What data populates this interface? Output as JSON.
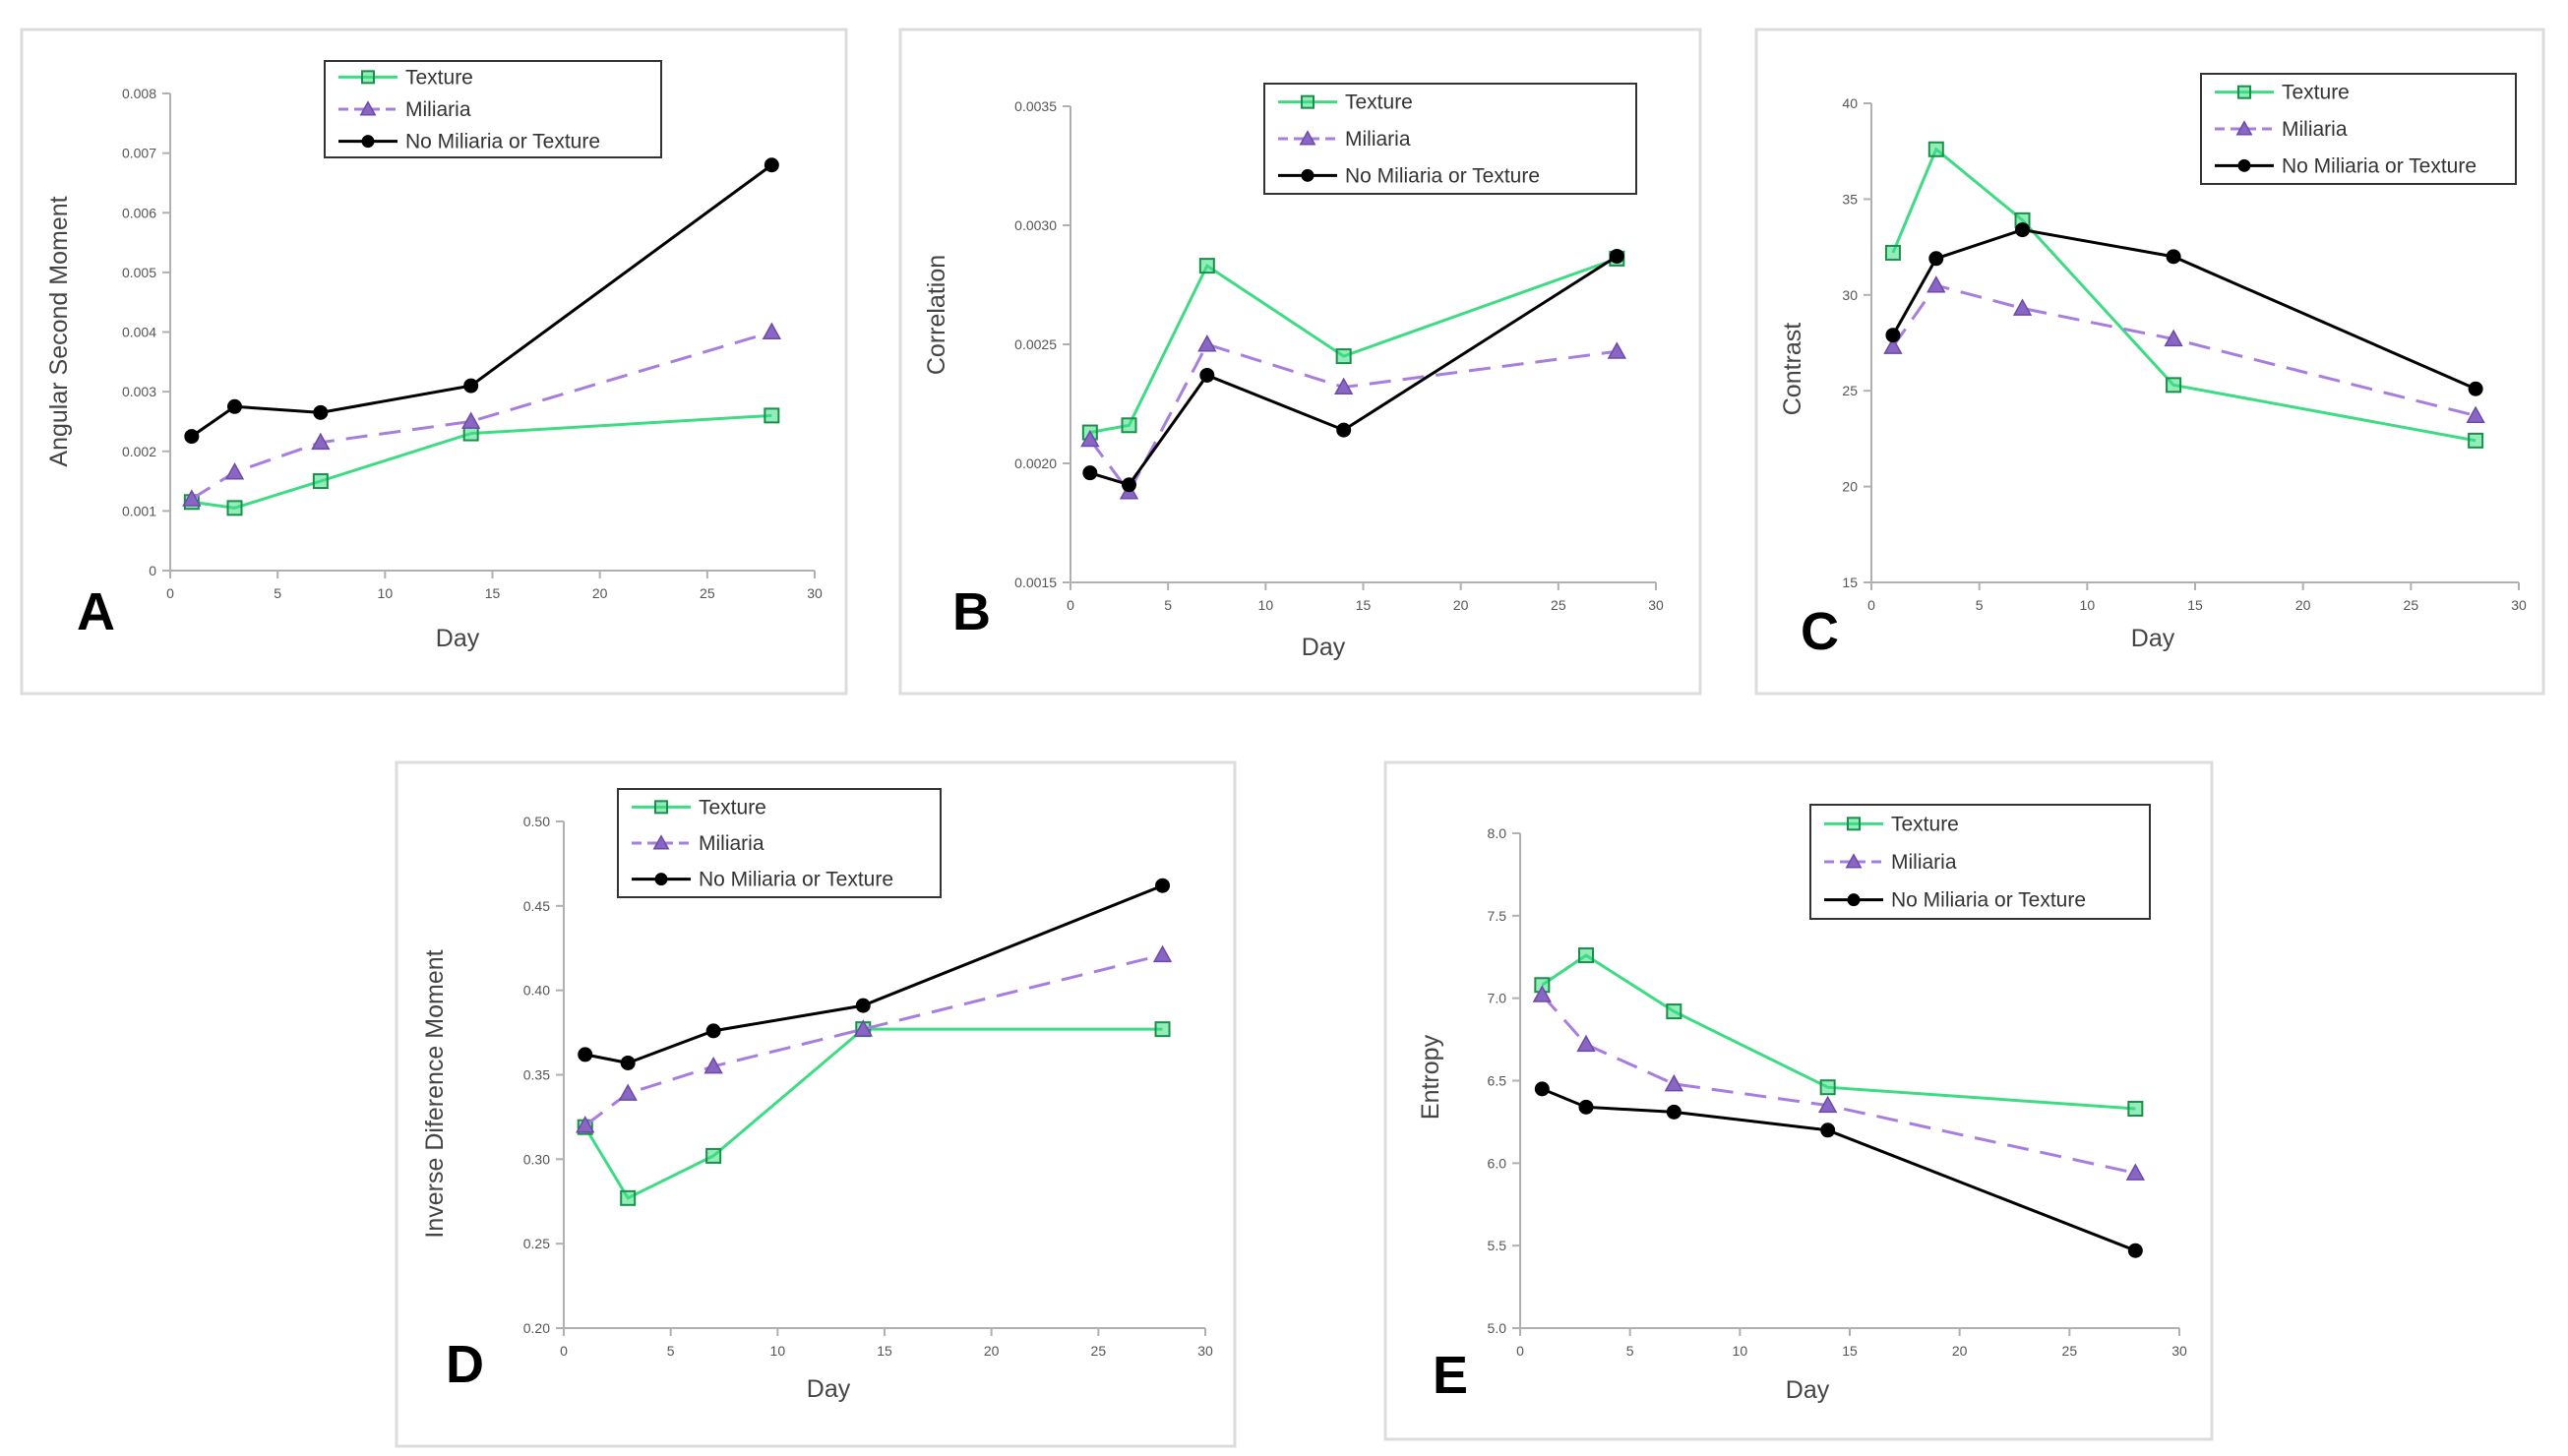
{
  "colors": {
    "texture": "#3ddc84",
    "miliaria": "#a77ee0",
    "none": "#000000",
    "miliaria_marker": "#8a66c4"
  },
  "chart_data": [
    {
      "panel_label": "A",
      "type": "line",
      "xlabel": "Day",
      "ylabel": "Angular Second Moment",
      "xlim": [
        0,
        30
      ],
      "ylim": [
        0,
        0.008
      ],
      "xticks": [
        "0",
        "5",
        "10",
        "15",
        "20",
        "25",
        "30"
      ],
      "yticks": [
        "0",
        "0.001",
        "0.002",
        "0.003",
        "0.004",
        "0.005",
        "0.006",
        "0.007",
        "0.008"
      ],
      "x": [
        1,
        3,
        7,
        14,
        28
      ],
      "series": [
        {
          "name": "Texture",
          "values": [
            0.00115,
            0.00105,
            0.0015,
            0.0023,
            0.0026
          ]
        },
        {
          "name": "Miliaria",
          "values": [
            0.0012,
            0.00165,
            0.00215,
            0.0025,
            0.004
          ]
        },
        {
          "name": "No Miliaria or Texture",
          "values": [
            0.00225,
            0.00275,
            0.00265,
            0.0031,
            0.0068
          ]
        }
      ],
      "legend": "top-center",
      "grid": false
    },
    {
      "panel_label": "B",
      "type": "line",
      "xlabel": "Day",
      "ylabel": "Correlation",
      "xlim": [
        0,
        30
      ],
      "ylim": [
        0.0015,
        0.0035
      ],
      "xticks": [
        "0",
        "5",
        "10",
        "15",
        "20",
        "25",
        "30"
      ],
      "yticks": [
        "0.0015",
        "0.0020",
        "0.0025",
        "0.0030",
        "0.0035"
      ],
      "x": [
        1,
        3,
        7,
        14,
        28
      ],
      "series": [
        {
          "name": "Texture",
          "values": [
            0.00213,
            0.00216,
            0.00283,
            0.00245,
            0.00286
          ]
        },
        {
          "name": "Miliaria",
          "values": [
            0.0021,
            0.00188,
            0.0025,
            0.00232,
            0.00247
          ]
        },
        {
          "name": "No Miliaria or Texture",
          "values": [
            0.00196,
            0.00191,
            0.00237,
            0.00214,
            0.00287
          ]
        }
      ],
      "legend": "top-right",
      "grid": false
    },
    {
      "panel_label": "C",
      "type": "line",
      "xlabel": "Day",
      "ylabel": "Contrast",
      "xlim": [
        0,
        30
      ],
      "ylim": [
        15,
        40
      ],
      "xticks": [
        "0",
        "5",
        "10",
        "15",
        "20",
        "25",
        "30"
      ],
      "yticks": [
        "15",
        "20",
        "25",
        "30",
        "35",
        "40"
      ],
      "x": [
        1,
        3,
        7,
        14,
        28
      ],
      "series": [
        {
          "name": "Texture",
          "values": [
            32.2,
            37.6,
            33.9,
            25.3,
            22.4
          ]
        },
        {
          "name": "Miliaria",
          "values": [
            27.3,
            30.5,
            29.3,
            27.7,
            23.7
          ]
        },
        {
          "name": "No Miliaria or Texture",
          "values": [
            27.9,
            31.9,
            33.4,
            32.0,
            25.1
          ]
        }
      ],
      "legend": "top-right",
      "grid": false
    },
    {
      "panel_label": "D",
      "type": "line",
      "xlabel": "Day",
      "ylabel": "Inverse Diference Moment",
      "xlim": [
        0,
        30
      ],
      "ylim": [
        0.2,
        0.5
      ],
      "xticks": [
        "0",
        "5",
        "10",
        "15",
        "20",
        "25",
        "30"
      ],
      "yticks": [
        "0.20",
        "0.25",
        "0.30",
        "0.35",
        "0.40",
        "0.45",
        "0.50"
      ],
      "x": [
        1,
        3,
        7,
        14,
        28
      ],
      "series": [
        {
          "name": "Texture",
          "values": [
            0.319,
            0.277,
            0.302,
            0.377,
            0.377
          ]
        },
        {
          "name": "Miliaria",
          "values": [
            0.32,
            0.339,
            0.355,
            0.377,
            0.421
          ]
        },
        {
          "name": "No Miliaria or Texture",
          "values": [
            0.362,
            0.357,
            0.376,
            0.391,
            0.462
          ]
        }
      ],
      "legend": "top-center",
      "grid": false
    },
    {
      "panel_label": "E",
      "type": "line",
      "xlabel": "Day",
      "ylabel": "Entropy",
      "xlim": [
        0,
        30
      ],
      "ylim": [
        5.0,
        8.0
      ],
      "xticks": [
        "0",
        "5",
        "10",
        "15",
        "20",
        "25",
        "30"
      ],
      "yticks": [
        "5.0",
        "5.5",
        "6.0",
        "6.5",
        "7.0",
        "7.5",
        "8.0"
      ],
      "x": [
        1,
        3,
        7,
        14,
        28
      ],
      "series": [
        {
          "name": "Texture",
          "values": [
            7.08,
            7.26,
            6.92,
            6.46,
            6.33
          ]
        },
        {
          "name": "Miliaria",
          "values": [
            7.02,
            6.72,
            6.48,
            6.35,
            5.94
          ]
        },
        {
          "name": "No Miliaria or Texture",
          "values": [
            6.45,
            6.34,
            6.31,
            6.2,
            5.47
          ]
        }
      ],
      "legend": "top-right",
      "grid": false
    }
  ]
}
